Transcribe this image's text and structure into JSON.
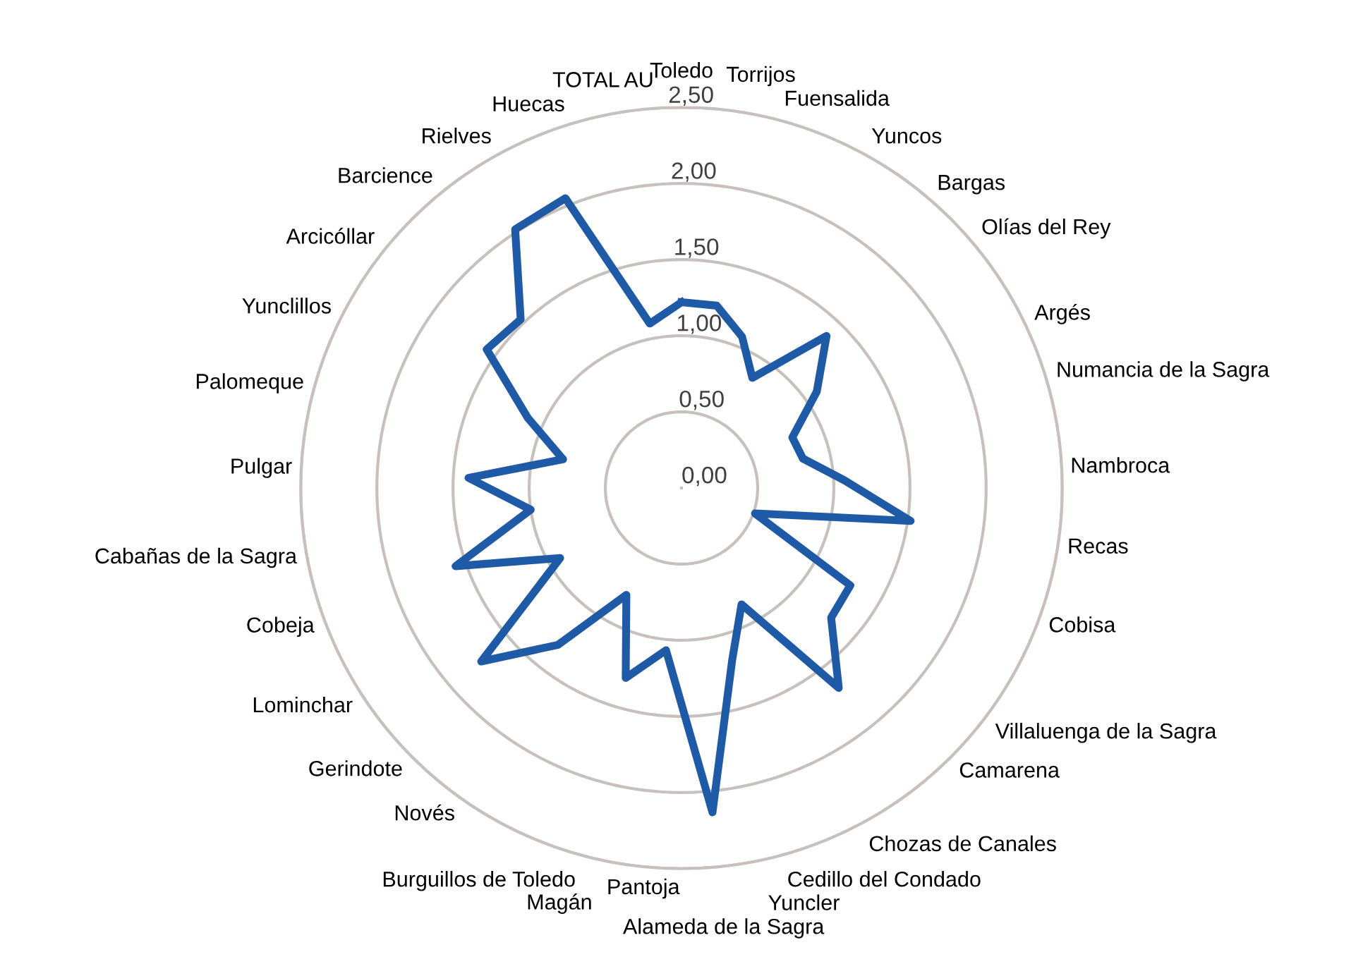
{
  "chart_data": {
    "type": "radar",
    "categories": [
      "Toledo",
      "Torrijos",
      "Fuensalida",
      "Yuncos",
      "Bargas",
      "Olías del Rey",
      "Argés",
      "Numancia de la Sagra",
      "Nambroca",
      "Recas",
      "Cobisa",
      "Villaluenga de la Sagra",
      "Camarena",
      "Chozas de Canales",
      "Cedillo del Condado",
      "Yuncler",
      "Alameda de la Sagra",
      "Pantoja",
      "Magán",
      "Burguillos de Toledo",
      "Novés",
      "Gerindote",
      "Lominchar",
      "Cobeja",
      "Cabañas de la Sagra",
      "Pulgar",
      "Palomeque",
      "Yunclillos",
      "Arcicóllar",
      "Barcience",
      "Rielves",
      "Huecas",
      "TOTAL AU"
    ],
    "series": [
      {
        "color": "#1f5aa6",
        "values": [
          1.22,
          1.22,
          1.07,
          0.86,
          1.38,
          1.09,
          0.8,
          0.82,
          1.07,
          1.52,
          0.51,
          1.28,
          1.3,
          1.67,
          0.86,
          1.18,
          2.14,
          1.07,
          1.3,
          0.79,
          1.31,
          1.74,
          0.92,
          1.57,
          1.0,
          1.4,
          0.8,
          1.11,
          1.57,
          1.53,
          2.02,
          2.05,
          1.1
        ]
      }
    ],
    "ylim": [
      0,
      2.5
    ],
    "yticks": [
      {
        "value": 0,
        "label": "0,00"
      },
      {
        "value": 0.5,
        "label": "0,50"
      },
      {
        "value": 1.0,
        "label": "1,00"
      },
      {
        "value": 1.5,
        "label": "1,50"
      },
      {
        "value": 2.0,
        "label": "2,00"
      },
      {
        "value": 2.5,
        "label": "2,50"
      }
    ],
    "grid": "y",
    "marker": "none",
    "line_style": "solid"
  }
}
